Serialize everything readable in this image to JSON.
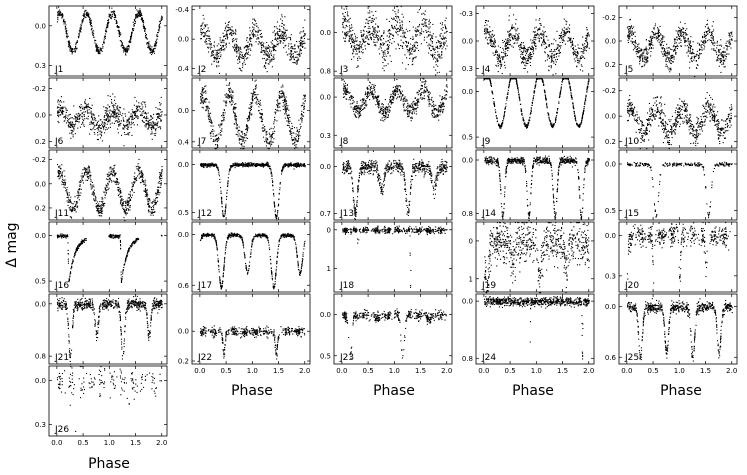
{
  "chart_data": {
    "type": "scatter",
    "ylabel": "Δ mag",
    "xlabel": "Phase",
    "x_ticks": [
      "0.0",
      "0.5",
      "1.0",
      "1.5",
      "2.0"
    ],
    "xlim": [
      -0.15,
      2.1
    ],
    "y_inverted": true,
    "panels": [
      {
        "id": "J1",
        "label": "J1",
        "yticks": [
          "0.0",
          "0.3"
        ],
        "ylim": [
          -0.15,
          0.38
        ],
        "shape": "sine",
        "amp": 0.29,
        "noise": 0.015
      },
      {
        "id": "J2",
        "label": "J2",
        "yticks": [
          "-0.4",
          "0.0",
          "0.4"
        ],
        "ylim": [
          -0.45,
          0.5
        ],
        "shape": "sine",
        "amp": 0.35,
        "noise": 0.09
      },
      {
        "id": "J3",
        "label": "J3",
        "yticks": [
          "0.0",
          "0.8"
        ],
        "ylim": [
          -0.55,
          0.9
        ],
        "shape": "sine",
        "amp": 0.55,
        "noise": 0.2
      },
      {
        "id": "J4",
        "label": "J4",
        "yticks": [
          "-0.3",
          "0.0",
          "0.3"
        ],
        "ylim": [
          -0.38,
          0.38
        ],
        "shape": "sine",
        "amp": 0.3,
        "noise": 0.07
      },
      {
        "id": "J5",
        "label": "J5",
        "yticks": [
          "-0.2",
          "0.0",
          "0.2"
        ],
        "ylim": [
          -0.3,
          0.3
        ],
        "shape": "sine",
        "amp": 0.22,
        "noise": 0.05
      },
      {
        "id": "J6",
        "label": "J6",
        "yticks": [
          "-0.2",
          "0.0",
          "0.2"
        ],
        "ylim": [
          -0.28,
          0.25
        ],
        "shape": "sine",
        "amp": 0.13,
        "noise": 0.05
      },
      {
        "id": "J7",
        "label": "J7",
        "yticks": [
          "0.0",
          "0.4"
        ],
        "ylim": [
          -0.42,
          0.48
        ],
        "shape": "sine",
        "amp": 0.6,
        "noise": 0.07
      },
      {
        "id": "J8",
        "label": "J8",
        "yticks": [
          "0.0",
          "0.3"
        ],
        "ylim": [
          -0.15,
          0.4
        ],
        "shape": "sine",
        "amp": 0.17,
        "noise": 0.035
      },
      {
        "id": "J9",
        "label": "J9",
        "yticks": [
          "0.0",
          "0.5"
        ],
        "ylim": [
          -0.15,
          0.62
        ],
        "shape": "sine",
        "amp": 0.58,
        "noise": 0.01
      },
      {
        "id": "J10",
        "label": "J10",
        "yticks": [
          "-0.2",
          "0.0",
          "0.2"
        ],
        "ylim": [
          -0.3,
          0.25
        ],
        "shape": "sine",
        "amp": 0.2,
        "noise": 0.05
      },
      {
        "id": "J11",
        "label": "J11",
        "yticks": [
          "-0.2",
          "0.0",
          "0.2"
        ],
        "ylim": [
          -0.28,
          0.3
        ],
        "shape": "sine",
        "amp": 0.32,
        "noise": 0.035
      },
      {
        "id": "J12",
        "label": "J12",
        "yticks": [
          "0.0",
          "0.5"
        ],
        "ylim": [
          -0.15,
          0.58
        ],
        "shape": "eclipse",
        "dips": [
          0.45
        ],
        "depth": 0.55,
        "width": 0.05,
        "noise": 0.01
      },
      {
        "id": "J13",
        "label": "J13",
        "yticks": [
          "0.0",
          "0.7"
        ],
        "ylim": [
          -0.25,
          0.8
        ],
        "shape": "eclipse",
        "dips": [
          0.25,
          0.75
        ],
        "depth": 0.7,
        "width": 0.04,
        "depth2": 0.35,
        "noise": 0.05
      },
      {
        "id": "J14",
        "label": "J14",
        "yticks": [
          "0.0",
          "0.8"
        ],
        "ylim": [
          -0.15,
          0.9
        ],
        "shape": "eclipse",
        "dips": [
          0.35,
          0.85
        ],
        "depth": 0.85,
        "width": 0.035,
        "depth2": 0.85,
        "noise": 0.025
      },
      {
        "id": "J15",
        "label": "J15",
        "yticks": [
          "0.0",
          "0.5"
        ],
        "ylim": [
          -0.15,
          0.6
        ],
        "shape": "eclipse",
        "dips": [
          0.55
        ],
        "depth": 0.55,
        "width": 0.045,
        "depth2": 0.2,
        "sparse": true,
        "noise": 0.01
      },
      {
        "id": "J16",
        "label": "J16",
        "yticks": [
          "0.0",
          "0.5"
        ],
        "ylim": [
          -0.15,
          0.62
        ],
        "shape": "gap",
        "dips": [
          0.2
        ],
        "depth": 0.6,
        "noise": 0.01
      },
      {
        "id": "J17",
        "label": "J17",
        "yticks": [
          "0.0",
          "0.6"
        ],
        "ylim": [
          -0.15,
          0.68
        ],
        "shape": "eclipse",
        "dips": [
          0.4,
          0.9
        ],
        "depth": 0.62,
        "width": 0.05,
        "depth2": 0.45,
        "noise": 0.01
      },
      {
        "id": "J18",
        "label": "J18",
        "yticks": [
          "0",
          "1"
        ],
        "ylim": [
          -0.2,
          1.6
        ],
        "shape": "deep",
        "dips": [
          0.3
        ],
        "depth": 1.55,
        "noise": 0.04
      },
      {
        "id": "J19",
        "label": "J19",
        "yticks": [
          "0",
          "1"
        ],
        "ylim": [
          -0.5,
          1.35
        ],
        "shape": "eclipse",
        "dips": [
          0.05,
          0.55
        ],
        "depth": 1.1,
        "width": 0.04,
        "depth2": 0.6,
        "noise": 0.28
      },
      {
        "id": "J20",
        "label": "J20",
        "yticks": [
          "0.0",
          "0.3"
        ],
        "ylim": [
          -0.1,
          0.42
        ],
        "shape": "eclipse",
        "dips": [
          0.0,
          0.5
        ],
        "depth": 0.3,
        "width": 0.015,
        "depth2": 0.28,
        "noise": 0.04
      },
      {
        "id": "J21",
        "label": "J21",
        "yticks": [
          "0.0",
          "0.8"
        ],
        "ylim": [
          -0.15,
          0.92
        ],
        "shape": "eclipse",
        "dips": [
          0.25,
          0.75
        ],
        "depth": 0.85,
        "width": 0.03,
        "depth2": 0.5,
        "noise": 0.04
      },
      {
        "id": "J22",
        "label": "J22",
        "yticks": [
          "0.0",
          "0.2"
        ],
        "ylim": [
          -0.25,
          0.22
        ],
        "shape": "eclipse",
        "dips": [
          0.45
        ],
        "depth": 0.15,
        "width": 0.02,
        "depth2": 0.0,
        "noise": 0.015
      },
      {
        "id": "J23",
        "label": "J23",
        "yticks": [
          "0.0",
          "0.5"
        ],
        "ylim": [
          -0.25,
          0.6
        ],
        "shape": "eclipse",
        "dips": [
          0.15,
          0.65
        ],
        "depth": 0.5,
        "width": 0.03,
        "depth2": 0.05,
        "noise": 0.03
      },
      {
        "id": "J24",
        "label": "J24",
        "yticks": [
          "0.0",
          "0.8"
        ],
        "ylim": [
          -0.1,
          0.88
        ],
        "shape": "deep",
        "dips": [
          0.87
        ],
        "depth": 0.85,
        "noise": 0.03
      },
      {
        "id": "J25",
        "label": "J25",
        "yticks": [
          "0.0",
          "0.6"
        ],
        "ylim": [
          -0.15,
          0.68
        ],
        "shape": "eclipse",
        "dips": [
          0.25,
          0.75
        ],
        "depth": 0.6,
        "width": 0.035,
        "depth2": 0.55,
        "noise": 0.03
      },
      {
        "id": "J26",
        "label": "J26",
        "yticks": [
          "0.0",
          "0.3"
        ],
        "ylim": [
          -0.1,
          0.38
        ],
        "shape": "eclipse",
        "dips": [
          0.35,
          0.85
        ],
        "depth": 0.35,
        "width": 0.012,
        "depth2": 0.0,
        "noise": 0.05,
        "sparse": true
      }
    ]
  }
}
